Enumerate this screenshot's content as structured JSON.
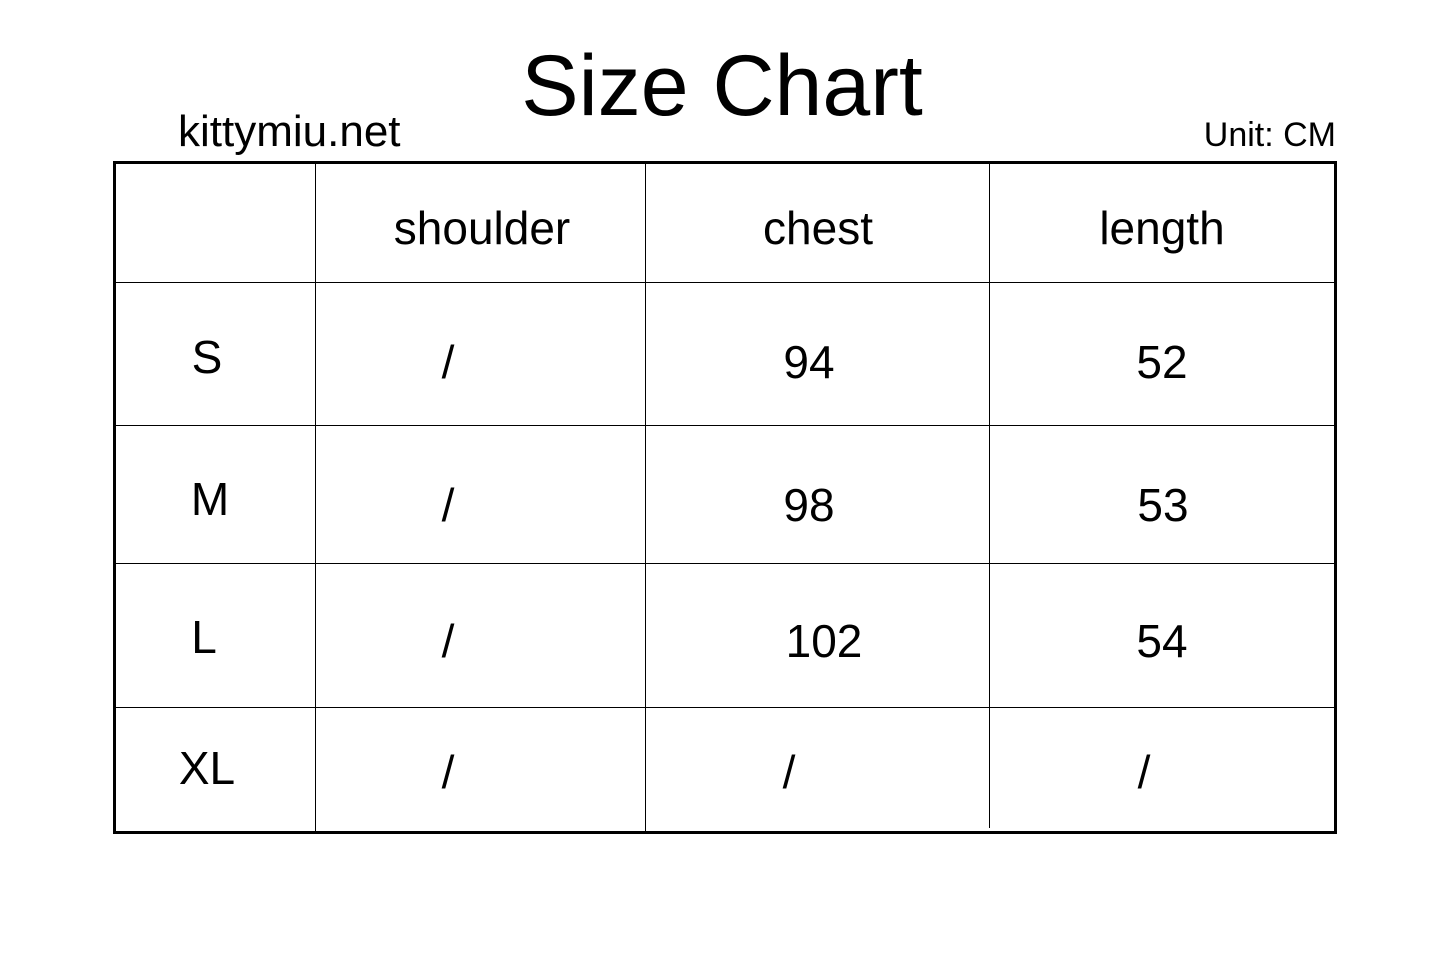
{
  "title": "Size Chart",
  "site": "kittymiu.net",
  "unit": "Unit: CM",
  "table": {
    "headers": [
      "",
      "shoulder",
      "chest",
      "length"
    ],
    "rows": [
      {
        "size": "S",
        "shoulder": "/",
        "chest": "94",
        "length": "52"
      },
      {
        "size": "M",
        "shoulder": "/",
        "chest": "98",
        "length": "53"
      },
      {
        "size": "L",
        "shoulder": "/",
        "chest": "102",
        "length": "54"
      },
      {
        "size": "XL",
        "shoulder": "/",
        "chest": "/",
        "length": "/"
      }
    ]
  }
}
